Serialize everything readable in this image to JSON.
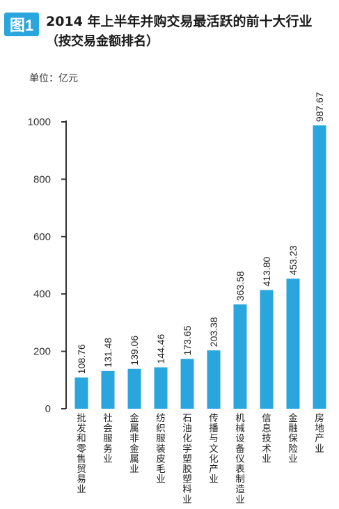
{
  "figure_badge": "图1",
  "title": "2014 年上半年并购交易最活跃的前十大行业",
  "subtitle": "（按交易金额排名）",
  "unit": "单位：亿元",
  "colors": {
    "bar": "#2aa6de",
    "badge": "#2aa6de",
    "axis": "#333333"
  },
  "chart_data": {
    "type": "bar",
    "title": "2014 年上半年并购交易最活跃的前十大行业",
    "subtitle": "（按交易金额排名）",
    "ylabel": "单位：亿元",
    "ylim": [
      0,
      1000
    ],
    "yticks": [
      0,
      200,
      400,
      600,
      800,
      1000
    ],
    "grid": false,
    "categories": [
      "批发和零售贸易业",
      "社会服务业",
      "金属非金属业",
      "纺织服装皮毛业",
      "石油化学塑胶塑料业",
      "传播与文化产业",
      "机械设备仪表制造业",
      "信息技术业",
      "金融保险业",
      "房地产业"
    ],
    "values": [
      108.76,
      131.48,
      139.06,
      144.46,
      173.65,
      203.38,
      363.58,
      413.8,
      453.23,
      987.67
    ],
    "value_labels": [
      "108.76",
      "131.48",
      "139.06",
      "144.46",
      "173.65",
      "203.38",
      "363.58",
      "413.80",
      "453.23",
      "987.67"
    ]
  }
}
